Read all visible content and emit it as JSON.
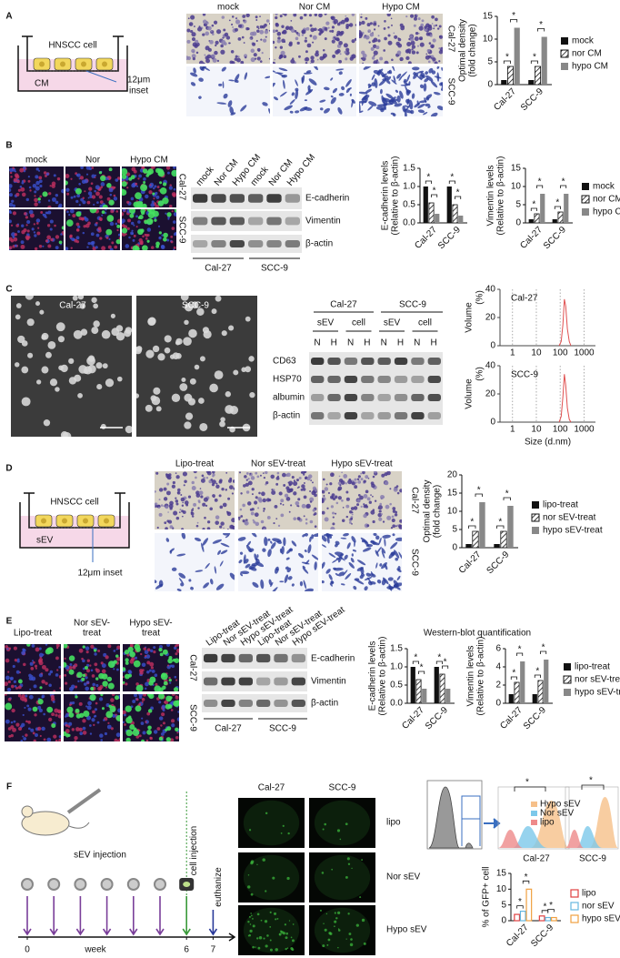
{
  "A": {
    "label": "A",
    "schematic": {
      "cell": "HNSCC cell",
      "medium": "CM",
      "inset": [
        "12μm",
        "inset"
      ]
    },
    "images": {
      "columns": [
        "mock",
        "Nor CM",
        "Hypo CM"
      ],
      "rows": [
        "Cal-27",
        "SCC-9"
      ]
    },
    "chart": {
      "type": "bar",
      "ylabel": [
        "Optimal density",
        "(fold change)"
      ],
      "categories": [
        "Cal-27",
        "SCC-9"
      ],
      "ylim": [
        0,
        15
      ],
      "yticks": [
        0,
        5,
        10,
        15
      ],
      "significance": "*",
      "legend": true,
      "series": [
        {
          "name": "mock",
          "color": "#111111",
          "style": "solid",
          "values": [
            1,
            1
          ]
        },
        {
          "name": "nor CM",
          "color": "#111111",
          "style": "hatched",
          "values": [
            4,
            4
          ]
        },
        {
          "name": "hypo CM",
          "color": "#888888",
          "style": "solid",
          "values": [
            12.5,
            10.5
          ]
        }
      ]
    }
  },
  "B": {
    "label": "B",
    "images": {
      "columns": [
        "mock",
        "Nor",
        "Hypo CM"
      ],
      "rows": [
        "Cal-27",
        "SCC-9"
      ]
    },
    "blot": {
      "lanes": [
        "mock",
        "Nor CM",
        "Hypo CM",
        "mock",
        "Nor CM",
        "Hypo CM"
      ],
      "proteins": [
        "E-cadherin",
        "Vimentin",
        "β-actin"
      ],
      "groups": [
        "Cal-27",
        "SCC-9"
      ]
    },
    "charts": [
      {
        "type": "bar",
        "ylabel": [
          "E-cadherin levels",
          "(Relative to β-actin)"
        ],
        "categories": [
          "Cal-27",
          "SCC-9"
        ],
        "ylim": [
          0,
          1.5
        ],
        "yticks": [
          {
            "value": 0,
            "label": "0.0"
          },
          0.5,
          {
            "value": 1,
            "label": "1.0"
          },
          1.5
        ],
        "significance": "*",
        "legend": false,
        "series": [
          {
            "name": "mock",
            "color": "#111111",
            "style": "solid",
            "values": [
              1,
              1
            ]
          },
          {
            "name": "nor CM",
            "color": "#111111",
            "style": "hatched",
            "values": [
              0.55,
              0.5
            ]
          },
          {
            "name": "hypo CM",
            "color": "#888888",
            "style": "solid",
            "values": [
              0.25,
              0.2
            ]
          }
        ]
      },
      {
        "type": "bar",
        "ylabel": [
          "Vimentin levels",
          "(Relative to β-actin)"
        ],
        "categories": [
          "Cal-27",
          "SCC-9"
        ],
        "ylim": [
          0,
          15
        ],
        "yticks": [
          0,
          5,
          10,
          15
        ],
        "significance": "*",
        "legend": true,
        "series": [
          {
            "name": "mock",
            "color": "#111111",
            "style": "solid",
            "values": [
              1,
              1
            ]
          },
          {
            "name": "nor CM",
            "color": "#111111",
            "style": "hatched",
            "values": [
              2.5,
              3
            ]
          },
          {
            "name": "hypo CM",
            "color": "#888888",
            "style": "solid",
            "values": [
              8,
              8
            ]
          }
        ]
      }
    ]
  },
  "C": {
    "label": "C",
    "images": {
      "columns": [
        "Cal-27",
        "SCC-9"
      ]
    },
    "blot": {
      "groups": [
        "Cal-27",
        "SCC-9"
      ],
      "fractions": [
        "sEV",
        "cell",
        "sEV",
        "cell"
      ],
      "lanes": [
        "N",
        "H",
        "N",
        "H",
        "N",
        "H",
        "N",
        "H"
      ],
      "proteins": [
        "CD63",
        "HSP70",
        "albumin",
        "β-actin"
      ]
    },
    "charts": [
      {
        "type": "line",
        "title": "Cal-27",
        "ylabel": [
          "Volume",
          "(%)"
        ],
        "xscale": "log",
        "xlim": [
          0.3,
          3000
        ],
        "xticks": [
          1,
          10,
          100,
          1000
        ],
        "ylim": [
          0,
          40
        ],
        "yticks": [
          0,
          20,
          40
        ],
        "grid": true,
        "color": "#e05050",
        "x": [
          90,
          110,
          130,
          150,
          170,
          200,
          240,
          280
        ],
        "values": [
          0,
          3,
          15,
          33,
          28,
          12,
          3,
          0
        ]
      },
      {
        "type": "line",
        "title": "SCC-9",
        "ylabel": [
          "Volume",
          "(%)"
        ],
        "xlabel": "Size  (d.nm)",
        "xscale": "log",
        "xlim": [
          0.3,
          3000
        ],
        "xticks": [
          1,
          10,
          100,
          1000
        ],
        "ylim": [
          0,
          40
        ],
        "yticks": [
          0,
          20,
          40
        ],
        "grid": true,
        "color": "#e05050",
        "x": [
          90,
          110,
          130,
          150,
          170,
          200,
          240,
          280
        ],
        "values": [
          0,
          4,
          18,
          34,
          26,
          10,
          2,
          0
        ]
      }
    ]
  },
  "D": {
    "label": "D",
    "schematic": {
      "cell": "HNSCC cell",
      "medium": "sEV",
      "inset": [
        "12μm inset"
      ]
    },
    "images": {
      "columns": [
        "Lipo-treat",
        "Nor sEV-treat",
        "Hypo sEV-treat"
      ],
      "rows": [
        "Cal-27",
        "SCC-9"
      ]
    },
    "chart": {
      "type": "bar",
      "ylabel": [
        "Optimal density",
        "(fold change)"
      ],
      "categories": [
        "Cal-27",
        "SCC-9"
      ],
      "ylim": [
        0,
        20
      ],
      "yticks": [
        0,
        5,
        10,
        15,
        20
      ],
      "significance": "*",
      "legend": true,
      "series": [
        {
          "name": "lipo-treat",
          "color": "#111111",
          "style": "solid",
          "values": [
            1,
            1
          ]
        },
        {
          "name": "nor sEV-treat",
          "color": "#111111",
          "style": "hatched",
          "values": [
            4.5,
            4.5
          ]
        },
        {
          "name": "hypo sEV-treat",
          "color": "#888888",
          "style": "solid",
          "values": [
            12.5,
            11.5
          ]
        }
      ]
    }
  },
  "E": {
    "label": "E",
    "images": {
      "columns": [
        [
          "Lipo-treat"
        ],
        [
          "Nor sEV-",
          "treat"
        ],
        [
          "Hypo sEV-",
          "treat"
        ]
      ],
      "rows": [
        "Cal-27",
        "SCC-9"
      ]
    },
    "blot": {
      "lanes": [
        "Lipo-treat",
        "Nor sEV-treat",
        "Hypo sEV-treat",
        "Lipo-treat",
        "Nor sEV-treat",
        "Hypo sEV-treat"
      ],
      "proteins": [
        "E-cadherin",
        "Vimentin",
        "β-actin"
      ],
      "groups": [
        "Cal-27",
        "SCC-9"
      ]
    },
    "title": "Western-blot quantification",
    "charts": [
      {
        "type": "bar",
        "ylabel": [
          "E-cadherin levels",
          "(Relative to β-actin)"
        ],
        "categories": [
          "Cal-27",
          "SCC-9"
        ],
        "ylim": [
          0,
          1.5
        ],
        "yticks": [
          {
            "value": 0,
            "label": "0.0"
          },
          0.5,
          {
            "value": 1,
            "label": "1.0"
          },
          1.5
        ],
        "significance": "*",
        "legend": false,
        "series": [
          {
            "name": "lipo-treat",
            "color": "#111111",
            "style": "solid",
            "values": [
              1,
              1
            ]
          },
          {
            "name": "nor sEV-treat",
            "color": "#111111",
            "style": "hatched",
            "values": [
              0.65,
              0.8
            ]
          },
          {
            "name": "hypo sEV-treat",
            "color": "#888888",
            "style": "solid",
            "values": [
              0.4,
              0.4
            ]
          }
        ]
      },
      {
        "type": "bar",
        "ylabel": [
          "Vimentin levels",
          "(Relative to β-actin)"
        ],
        "categories": [
          "Cal-27",
          "SCC-9"
        ],
        "ylim": [
          0,
          6
        ],
        "yticks": [
          0,
          2,
          4,
          6
        ],
        "significance": "*",
        "legend": true,
        "series": [
          {
            "name": "lipo-treat",
            "color": "#111111",
            "style": "solid",
            "values": [
              1,
              1
            ]
          },
          {
            "name": "nor sEV-treat",
            "color": "#111111",
            "style": "hatched",
            "values": [
              2.3,
              2.5
            ]
          },
          {
            "name": "hypo sEV-treat",
            "color": "#888888",
            "style": "solid",
            "values": [
              4.6,
              4.8
            ]
          }
        ]
      }
    ]
  },
  "F": {
    "label": "F",
    "timeline": {
      "injection": "sEV injection",
      "cell": "cell injection",
      "end": "euthanize",
      "unit": "week",
      "ticks": [
        0,
        6,
        7
      ]
    },
    "images": {
      "columns": [
        "Cal-27",
        "SCC-9"
      ],
      "rows": [
        "lipo",
        "Nor sEV",
        "Hypo sEV"
      ]
    },
    "flow": {
      "legend": [
        "Hypo sEV",
        "Nor sEV",
        "lipo"
      ],
      "samples": [
        "Cal-27",
        "SCC-9"
      ],
      "significance": "*"
    },
    "chart": {
      "type": "bar",
      "ylabel": [
        "% of GFP+ cell"
      ],
      "categories": [
        "Cal-27",
        "SCC-9"
      ],
      "ylim": [
        0,
        15
      ],
      "yticks": [
        0,
        5,
        10,
        15
      ],
      "significance": "*",
      "legend": true,
      "series": [
        {
          "name": "lipo",
          "color": "#e04040",
          "style": "outline",
          "values": [
            2,
            1.5
          ]
        },
        {
          "name": "nor sEV",
          "color": "#66b8e0",
          "style": "outline",
          "values": [
            3,
            1
          ]
        },
        {
          "name": "hypo sEV",
          "color": "#f0a040",
          "style": "outline",
          "values": [
            10,
            1
          ]
        }
      ]
    }
  }
}
